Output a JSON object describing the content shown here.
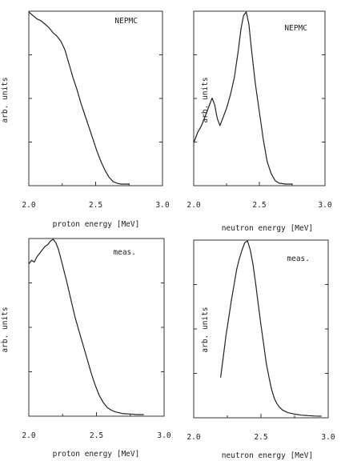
{
  "chart_data": [
    {
      "type": "line",
      "annotation": "NEPMC",
      "xlabel": "proton energy [MeV]",
      "ylabel": "arb. units",
      "xlim": [
        2.0,
        3.0
      ],
      "xticks": [
        "2.0",
        "2.5",
        "3.0"
      ],
      "series": [
        {
          "x": [
            2.0,
            2.03,
            2.06,
            2.09,
            2.12,
            2.15,
            2.18,
            2.21,
            2.24,
            2.27,
            2.3,
            2.33,
            2.36,
            2.39,
            2.42,
            2.45,
            2.48,
            2.51,
            2.54,
            2.57,
            2.6,
            2.63,
            2.66,
            2.69,
            2.72,
            2.75
          ],
          "y": [
            1.0,
            0.98,
            0.96,
            0.95,
            0.93,
            0.91,
            0.88,
            0.86,
            0.83,
            0.78,
            0.7,
            0.62,
            0.55,
            0.47,
            0.4,
            0.33,
            0.26,
            0.19,
            0.13,
            0.08,
            0.04,
            0.015,
            0.005,
            0,
            0,
            0
          ]
        }
      ]
    },
    {
      "type": "line",
      "annotation": "NEPMC",
      "xlabel": "neutron energy [MeV]",
      "ylabel": "arb. units",
      "xlim": [
        2.0,
        3.0
      ],
      "xticks": [
        "2.0",
        "2.5",
        "3.0"
      ],
      "series": [
        {
          "x": [
            2.0,
            2.03,
            2.06,
            2.09,
            2.12,
            2.14,
            2.16,
            2.18,
            2.2,
            2.22,
            2.25,
            2.28,
            2.31,
            2.34,
            2.36,
            2.38,
            2.4,
            2.42,
            2.44,
            2.47,
            2.5,
            2.53,
            2.56,
            2.59,
            2.62,
            2.65,
            2.7,
            2.75
          ],
          "y": [
            0.24,
            0.3,
            0.34,
            0.4,
            0.46,
            0.5,
            0.46,
            0.38,
            0.34,
            0.38,
            0.44,
            0.52,
            0.62,
            0.78,
            0.9,
            0.98,
            1.0,
            0.93,
            0.78,
            0.58,
            0.42,
            0.26,
            0.13,
            0.06,
            0.02,
            0.005,
            0,
            0
          ]
        }
      ]
    },
    {
      "type": "line",
      "annotation": "meas.",
      "xlabel": "proton energy [MeV]",
      "ylabel": "arb. units",
      "xlim": [
        2.0,
        3.0
      ],
      "xticks": [
        "2.0",
        "2.5",
        "3.0"
      ],
      "series": [
        {
          "x": [
            2.0,
            2.02,
            2.04,
            2.06,
            2.08,
            2.1,
            2.12,
            2.14,
            2.16,
            2.18,
            2.2,
            2.22,
            2.25,
            2.28,
            2.31,
            2.34,
            2.37,
            2.4,
            2.43,
            2.46,
            2.49,
            2.52,
            2.55,
            2.58,
            2.61,
            2.64,
            2.67,
            2.7,
            2.75,
            2.8,
            2.85
          ],
          "y": [
            0.86,
            0.88,
            0.87,
            0.9,
            0.92,
            0.94,
            0.96,
            0.97,
            0.99,
            1.0,
            0.98,
            0.94,
            0.85,
            0.76,
            0.66,
            0.56,
            0.48,
            0.4,
            0.32,
            0.24,
            0.17,
            0.11,
            0.07,
            0.04,
            0.025,
            0.015,
            0.01,
            0.005,
            0.003,
            0,
            0
          ]
        }
      ]
    },
    {
      "type": "line",
      "annotation": "meas.",
      "xlabel": "neutron energy [MeV]",
      "ylabel": "arb. units",
      "xlim": [
        2.0,
        3.0
      ],
      "xticks": [
        "2.0",
        "2.5",
        "3.0"
      ],
      "series": [
        {
          "x": [
            2.2,
            2.22,
            2.24,
            2.26,
            2.28,
            2.3,
            2.32,
            2.34,
            2.36,
            2.38,
            2.4,
            2.42,
            2.44,
            2.46,
            2.48,
            2.5,
            2.52,
            2.54,
            2.56,
            2.58,
            2.6,
            2.62,
            2.64,
            2.66,
            2.7,
            2.75,
            2.8,
            2.85,
            2.9,
            2.95
          ],
          "y": [
            0.22,
            0.34,
            0.46,
            0.56,
            0.66,
            0.75,
            0.84,
            0.9,
            0.95,
            0.99,
            1.0,
            0.95,
            0.87,
            0.76,
            0.64,
            0.52,
            0.41,
            0.3,
            0.22,
            0.15,
            0.1,
            0.07,
            0.05,
            0.035,
            0.02,
            0.012,
            0.006,
            0.003,
            0.001,
            0
          ]
        }
      ]
    }
  ]
}
